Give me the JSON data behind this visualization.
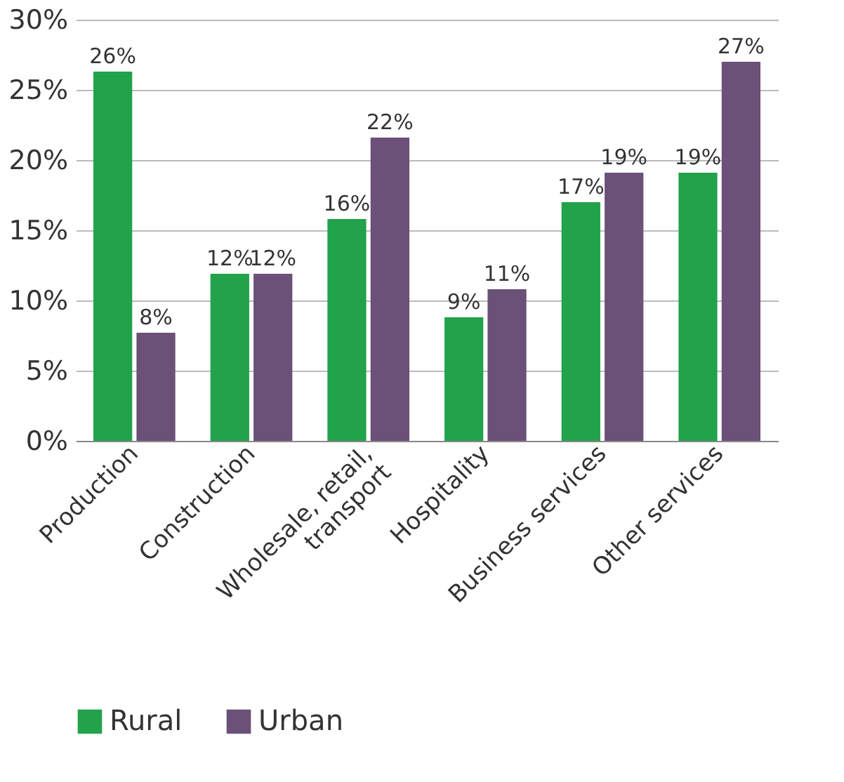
{
  "chart_data": {
    "type": "bar",
    "categories": [
      "Production",
      "Construction",
      "Wholesale, retail,\ntransport",
      "Hospitality",
      "Business services",
      "Other services"
    ],
    "series": [
      {
        "name": "Rural",
        "color": "#22a24b",
        "values": [
          26.3,
          11.9,
          15.8,
          8.8,
          17.0,
          19.1
        ],
        "value_labels": [
          "26%",
          "12%",
          "16%",
          "9%",
          "17%",
          "19%"
        ]
      },
      {
        "name": "Urban",
        "color": "#6b5078",
        "values": [
          7.7,
          11.9,
          21.6,
          10.8,
          19.1,
          27.0
        ],
        "value_labels": [
          "8%",
          "12%",
          "22%",
          "11%",
          "19%",
          "27%"
        ]
      }
    ],
    "ylim": [
      0,
      30
    ],
    "yticks": [
      {
        "value": 0,
        "label": "0%"
      },
      {
        "value": 5,
        "label": "5%"
      },
      {
        "value": 10,
        "label": "10%"
      },
      {
        "value": 15,
        "label": "15%"
      },
      {
        "value": 20,
        "label": "20%"
      },
      {
        "value": 25,
        "label": "25%"
      },
      {
        "value": 30,
        "label": "30%"
      }
    ],
    "grid": "y",
    "legend": "bottom"
  }
}
